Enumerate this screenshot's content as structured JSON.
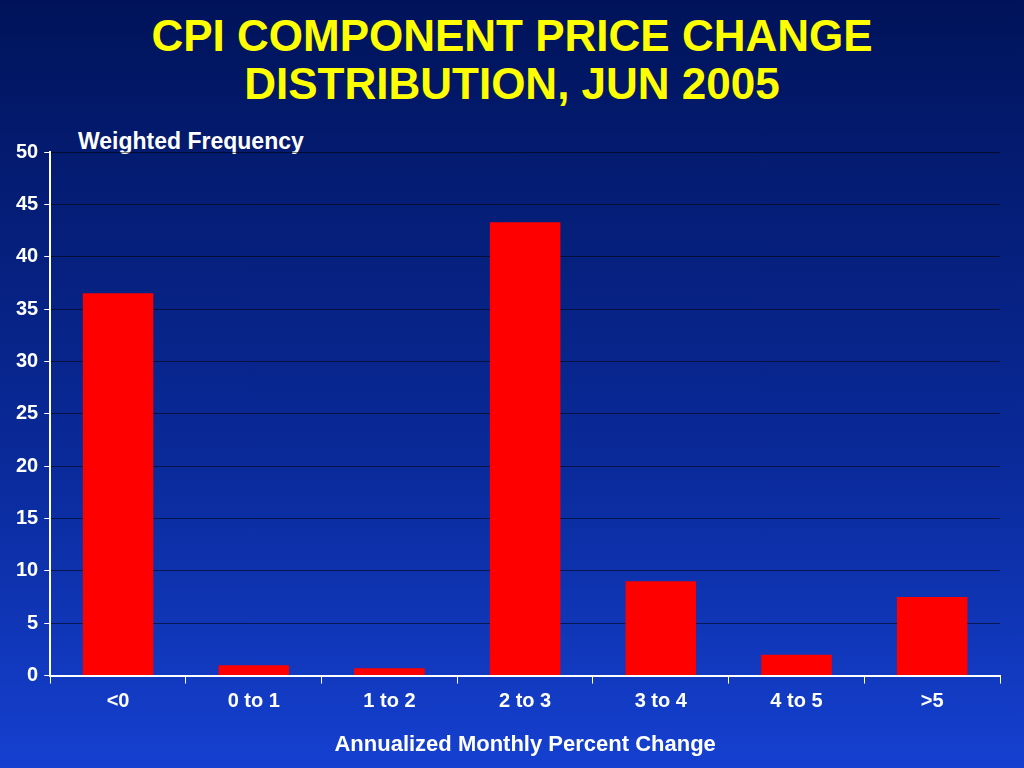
{
  "chart_data": {
    "type": "bar",
    "title": "CPI COMPONENT PRICE CHANGE DISTRIBUTION, JUN 2005",
    "y_label": "Weighted Frequency",
    "x_label": "Annualized Monthly Percent Change",
    "categories": [
      "<0",
      "0 to 1",
      "1 to 2",
      "2 to 3",
      "3 to 4",
      "4 to 5",
      ">5"
    ],
    "values": [
      36.5,
      1.0,
      0.7,
      43.3,
      9.0,
      2.0,
      7.5
    ],
    "color": "#ff0000",
    "ylim": [
      0,
      50
    ],
    "yticks": [
      0,
      5,
      10,
      15,
      20,
      25,
      30,
      35,
      40,
      45,
      50
    ],
    "grid": true
  }
}
